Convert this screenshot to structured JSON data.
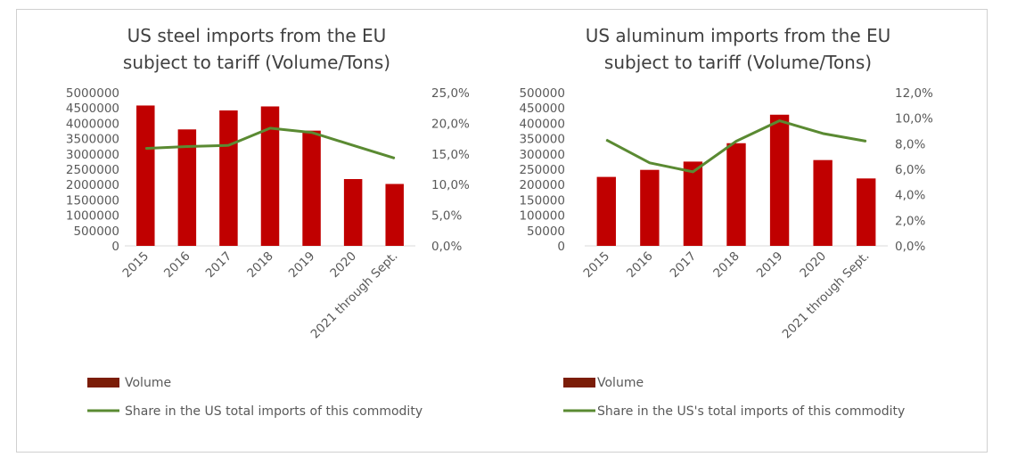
{
  "chart_data": [
    {
      "type": "bar",
      "title": [
        "US steel imports from the EU",
        "subject to tariff (Volume/Tons)"
      ],
      "categories": [
        "2015",
        "2016",
        "2017",
        "2018",
        "2019",
        "2020",
        "2021 through Sept."
      ],
      "series": [
        {
          "name": "Volume",
          "axis": "left",
          "kind": "bar",
          "color": "#c00000",
          "values": [
            4580000,
            3800000,
            4420000,
            4550000,
            3760000,
            2180000,
            2020000
          ]
        },
        {
          "name": "Share in the US total imports of this commodity",
          "axis": "right",
          "kind": "line",
          "color": "#5a8a32",
          "values": [
            15.9,
            16.2,
            16.4,
            19.2,
            18.5,
            16.4,
            14.3
          ]
        }
      ],
      "y_left": {
        "min": 0,
        "max": 5000000,
        "step": 500000,
        "ticks": [
          "0",
          "500000",
          "1000000",
          "1500000",
          "2000000",
          "2500000",
          "3000000",
          "3500000",
          "4000000",
          "4500000",
          "5000000"
        ]
      },
      "y_right": {
        "min": 0,
        "max": 25,
        "step": 5,
        "ticks": [
          "0,0%",
          "5,0%",
          "10,0%",
          "15,0%",
          "20,0%",
          "25,0%"
        ]
      },
      "legend": [
        "Volume",
        "Share in the US total imports of this commodity"
      ],
      "legend_swatch_color": "#7b1d08",
      "grid": false
    },
    {
      "type": "bar",
      "title": [
        "US aluminum imports from the EU",
        "subject to tariff (Volume/Tons)"
      ],
      "categories": [
        "2015",
        "2016",
        "2017",
        "2018",
        "2019",
        "2020",
        "2021 through Sept."
      ],
      "series": [
        {
          "name": "Volume",
          "axis": "left",
          "kind": "bar",
          "color": "#c00000",
          "values": [
            225000,
            248000,
            275000,
            335000,
            428000,
            280000,
            220000
          ]
        },
        {
          "name": "Share in the US's total imports of this commodity",
          "axis": "right",
          "kind": "line",
          "color": "#5a8a32",
          "values": [
            8.3,
            6.5,
            5.8,
            8.2,
            9.8,
            8.8,
            8.2
          ]
        }
      ],
      "y_left": {
        "min": 0,
        "max": 500000,
        "step": 50000,
        "ticks": [
          "0",
          "50000",
          "100000",
          "150000",
          "200000",
          "250000",
          "300000",
          "350000",
          "400000",
          "450000",
          "500000"
        ]
      },
      "y_right": {
        "min": 0,
        "max": 12,
        "step": 2,
        "ticks": [
          "0,0%",
          "2,0%",
          "4,0%",
          "6,0%",
          "8,0%",
          "10,0%",
          "12,0%"
        ]
      },
      "legend": [
        "Volume",
        "Share in the US's total imports of this commodity"
      ],
      "legend_swatch_color": "#7b1d08",
      "grid": false
    }
  ]
}
